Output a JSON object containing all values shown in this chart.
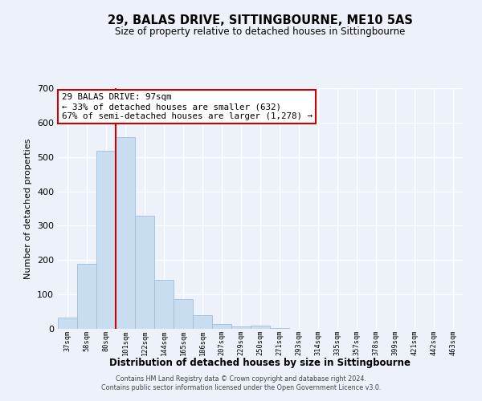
{
  "title": "29, BALAS DRIVE, SITTINGBOURNE, ME10 5AS",
  "subtitle": "Size of property relative to detached houses in Sittingbourne",
  "xlabel": "Distribution of detached houses by size in Sittingbourne",
  "ylabel": "Number of detached properties",
  "bar_values": [
    33,
    190,
    519,
    557,
    328,
    143,
    86,
    40,
    14,
    8,
    10,
    3,
    0,
    0,
    0,
    0,
    0,
    0,
    0,
    0,
    0
  ],
  "bin_labels": [
    "37sqm",
    "58sqm",
    "80sqm",
    "101sqm",
    "122sqm",
    "144sqm",
    "165sqm",
    "186sqm",
    "207sqm",
    "229sqm",
    "250sqm",
    "271sqm",
    "293sqm",
    "314sqm",
    "335sqm",
    "357sqm",
    "378sqm",
    "399sqm",
    "421sqm",
    "442sqm",
    "463sqm"
  ],
  "bar_color": "#c9ddf0",
  "bar_edge_color": "#a0bedd",
  "vline_x_index": 3,
  "vline_color": "#cc0000",
  "annotation_title": "29 BALAS DRIVE: 97sqm",
  "annotation_line1": "← 33% of detached houses are smaller (632)",
  "annotation_line2": "67% of semi-detached houses are larger (1,278) →",
  "ylim": [
    0,
    700
  ],
  "yticks": [
    0,
    100,
    200,
    300,
    400,
    500,
    600,
    700
  ],
  "footer_line1": "Contains HM Land Registry data © Crown copyright and database right 2024.",
  "footer_line2": "Contains public sector information licensed under the Open Government Licence v3.0.",
  "background_color": "#edf2fa",
  "grid_color": "#ffffff"
}
